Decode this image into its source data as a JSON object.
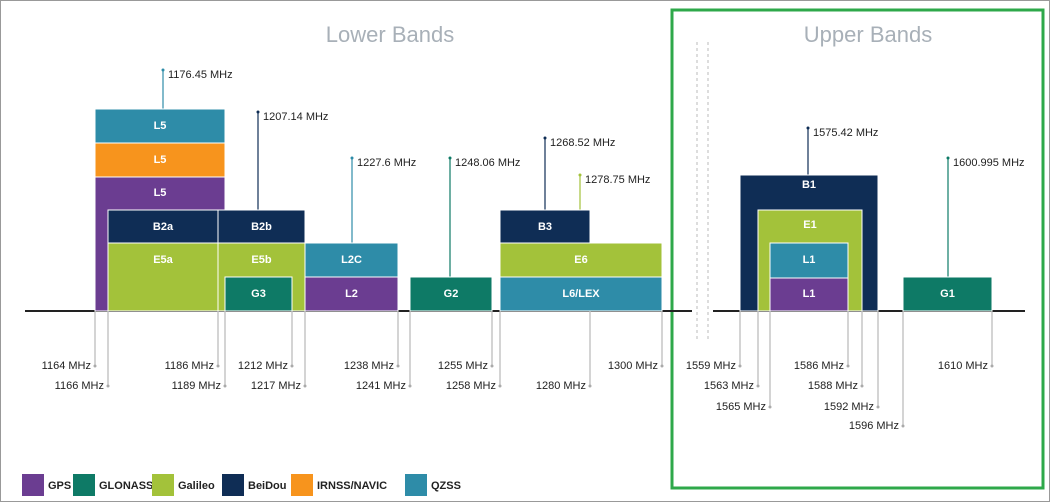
{
  "header": {
    "lower_title": "Lower Bands",
    "upper_title": "Upper Bands"
  },
  "blocks": [
    {
      "label": "L5",
      "color": "#2e8ca8"
    },
    {
      "label": "L5",
      "color": "#f7941d"
    },
    {
      "label": "L5",
      "color": "#6b3d91"
    },
    {
      "label": "B2a",
      "color": "#0f2d55"
    },
    {
      "label": "B2b",
      "color": "#0f2d55"
    },
    {
      "label": "E5a",
      "color": "#a3c23a"
    },
    {
      "label": "E5b",
      "color": "#a3c23a"
    },
    {
      "label": "G3",
      "color": "#0e7a66"
    },
    {
      "label": "L2C",
      "color": "#2e8ca8"
    },
    {
      "label": "L2",
      "color": "#6b3d91"
    },
    {
      "label": "G2",
      "color": "#0e7a66"
    },
    {
      "label": "B3",
      "color": "#0f2d55"
    },
    {
      "label": "E6",
      "color": "#a3c23a"
    },
    {
      "label": "L6/LEX",
      "color": "#2e8ca8"
    },
    {
      "label": "B1",
      "color": "#0f2d55"
    },
    {
      "label": "E1",
      "color": "#a3c23a"
    },
    {
      "label": "L1",
      "color": "#2e8ca8"
    },
    {
      "label": "L1",
      "color": "#6b3d91"
    },
    {
      "label": "G1",
      "color": "#0e7a66"
    }
  ],
  "center_frequencies": [
    "1176.45 MHz",
    "1207.14 MHz",
    "1227.6 MHz",
    "1248.06 MHz",
    "1268.52 MHz",
    "1278.75 MHz",
    "1575.42 MHz",
    "1600.995 MHz"
  ],
  "band_edges": [
    "1164 MHz",
    "1166 MHz",
    "1186 MHz",
    "1189 MHz",
    "1212 MHz",
    "1217 MHz",
    "1238 MHz",
    "1241 MHz",
    "1255 MHz",
    "1258 MHz",
    "1280 MHz",
    "1300 MHz",
    "1559 MHz",
    "1563 MHz",
    "1565 MHz",
    "1586 MHz",
    "1588 MHz",
    "1592 MHz",
    "1596 MHz",
    "1610 MHz"
  ],
  "legend": [
    {
      "name": "GPS",
      "color": "#6b3d91"
    },
    {
      "name": "GLONASS",
      "color": "#0e7a66"
    },
    {
      "name": "Galileo",
      "color": "#a3c23a"
    },
    {
      "name": "BeiDou",
      "color": "#0f2d55"
    },
    {
      "name": "IRNSS/NAVIC",
      "color": "#f7941d"
    },
    {
      "name": "QZSS",
      "color": "#2e8ca8"
    }
  ]
}
